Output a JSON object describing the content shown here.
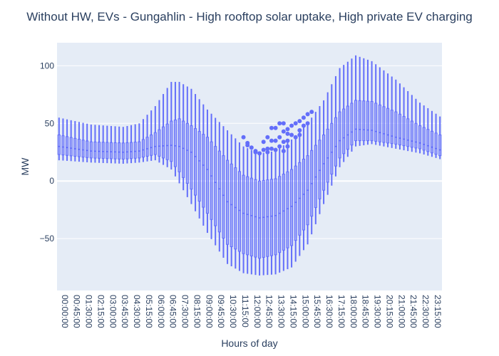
{
  "chart_data": {
    "type": "box",
    "title": "Without HW, EVs - Gungahlin - High rooftop solar uptake, High private EV charging",
    "xlabel": "Hours of day",
    "ylabel": "MW",
    "ylim": [
      -95,
      120
    ],
    "yticks": [
      -50,
      0,
      50,
      100
    ],
    "grid": true,
    "legend": "none",
    "series_color": "#636efa",
    "plot_bg": "#e5ecf6",
    "interval_minutes": 15,
    "x_tick_labels": [
      "00:00:00",
      "00:45:00",
      "01:30:00",
      "02:15:00",
      "03:00:00",
      "03:45:00",
      "04:30:00",
      "05:15:00",
      "06:00:00",
      "06:45:00",
      "07:30:00",
      "08:15:00",
      "09:00:00",
      "09:45:00",
      "10:30:00",
      "11:15:00",
      "12:00:00",
      "12:45:00",
      "13:30:00",
      "14:15:00",
      "15:00:00",
      "15:45:00",
      "16:30:00",
      "17:15:00",
      "18:00:00",
      "18:45:00",
      "19:30:00",
      "20:15:00",
      "21:00:00",
      "21:45:00",
      "22:30:00",
      "23:15:00"
    ],
    "anchors": [
      {
        "t": 0,
        "min": 18,
        "q1": 23,
        "median": 30,
        "q3": 40,
        "max": 55
      },
      {
        "t": 2,
        "min": 16,
        "q1": 20,
        "median": 26,
        "q3": 34,
        "max": 49
      },
      {
        "t": 4,
        "min": 15,
        "q1": 19,
        "median": 25,
        "q3": 33,
        "max": 47
      },
      {
        "t": 5,
        "min": 16,
        "q1": 20,
        "median": 26,
        "q3": 34,
        "max": 50
      },
      {
        "t": 6,
        "min": 18,
        "q1": 23,
        "median": 30,
        "q3": 42,
        "max": 65
      },
      {
        "t": 7,
        "min": 10,
        "q1": 17,
        "median": 31,
        "q3": 52,
        "max": 86
      },
      {
        "t": 7.5,
        "min": -2,
        "q1": 8,
        "median": 30,
        "q3": 54,
        "max": 86
      },
      {
        "t": 8.25,
        "min": -20,
        "q1": -7,
        "median": 25,
        "q3": 48,
        "max": 80
      },
      {
        "t": 9.25,
        "min": -45,
        "q1": -28,
        "median": 10,
        "q3": 38,
        "max": 62
      },
      {
        "t": 10.5,
        "min": -72,
        "q1": -55,
        "median": -18,
        "q3": 18,
        "max": 44
      },
      {
        "t": 11.5,
        "min": -80,
        "q1": -63,
        "median": -28,
        "q3": 5,
        "max": 30
      },
      {
        "t": 12.5,
        "min": -82,
        "q1": -67,
        "median": -32,
        "q3": 0,
        "max": 24
      },
      {
        "t": 13.5,
        "min": -81,
        "q1": -64,
        "median": -30,
        "q3": 2,
        "max": 26
      },
      {
        "t": 14.5,
        "min": -75,
        "q1": -56,
        "median": -22,
        "q3": 10,
        "max": 36
      },
      {
        "t": 15.5,
        "min": -55,
        "q1": -38,
        "median": -8,
        "q3": 22,
        "max": 50
      },
      {
        "t": 16.5,
        "min": -20,
        "q1": -8,
        "median": 15,
        "q3": 40,
        "max": 70
      },
      {
        "t": 17.5,
        "min": 12,
        "q1": 20,
        "median": 35,
        "q3": 60,
        "max": 98
      },
      {
        "t": 18.5,
        "min": 30,
        "q1": 35,
        "median": 45,
        "q3": 70,
        "max": 109
      },
      {
        "t": 19.5,
        "min": 32,
        "q1": 35,
        "median": 44,
        "q3": 69,
        "max": 104
      },
      {
        "t": 21,
        "min": 28,
        "q1": 32,
        "median": 38,
        "q3": 60,
        "max": 88
      },
      {
        "t": 22.5,
        "min": 24,
        "q1": 28,
        "median": 33,
        "q3": 48,
        "max": 68
      },
      {
        "t": 23.75,
        "min": 19,
        "q1": 22,
        "median": 27,
        "q3": 40,
        "max": 56
      }
    ],
    "outliers": [
      {
        "t": 11.5,
        "y": 38
      },
      {
        "t": 11.75,
        "y": 33
      },
      {
        "t": 11.75,
        "y": 31
      },
      {
        "t": 12.0,
        "y": 29
      },
      {
        "t": 12.25,
        "y": 25
      },
      {
        "t": 12.25,
        "y": 26
      },
      {
        "t": 12.5,
        "y": 24
      },
      {
        "t": 12.75,
        "y": 34
      },
      {
        "t": 12.75,
        "y": 27
      },
      {
        "t": 13.0,
        "y": 38
      },
      {
        "t": 13.0,
        "y": 28
      },
      {
        "t": 13.0,
        "y": 25
      },
      {
        "t": 13.25,
        "y": 46
      },
      {
        "t": 13.25,
        "y": 35
      },
      {
        "t": 13.25,
        "y": 28
      },
      {
        "t": 13.5,
        "y": 46
      },
      {
        "t": 13.5,
        "y": 35
      },
      {
        "t": 13.5,
        "y": 27
      },
      {
        "t": 13.75,
        "y": 50
      },
      {
        "t": 13.75,
        "y": 38
      },
      {
        "t": 13.75,
        "y": 30
      },
      {
        "t": 14.0,
        "y": 50
      },
      {
        "t": 14.0,
        "y": 43
      },
      {
        "t": 14.0,
        "y": 34
      },
      {
        "t": 14.0,
        "y": 26
      },
      {
        "t": 14.25,
        "y": 45
      },
      {
        "t": 14.25,
        "y": 41
      },
      {
        "t": 14.25,
        "y": 35
      },
      {
        "t": 14.25,
        "y": 30
      },
      {
        "t": 14.5,
        "y": 48
      },
      {
        "t": 14.5,
        "y": 40
      },
      {
        "t": 14.75,
        "y": 50
      },
      {
        "t": 14.75,
        "y": 38
      },
      {
        "t": 15.0,
        "y": 52
      },
      {
        "t": 15.0,
        "y": 44
      },
      {
        "t": 15.0,
        "y": 40
      },
      {
        "t": 15.25,
        "y": 55
      },
      {
        "t": 15.25,
        "y": 48
      },
      {
        "t": 15.5,
        "y": 58
      },
      {
        "t": 15.5,
        "y": 50
      },
      {
        "t": 15.75,
        "y": 60
      }
    ]
  }
}
